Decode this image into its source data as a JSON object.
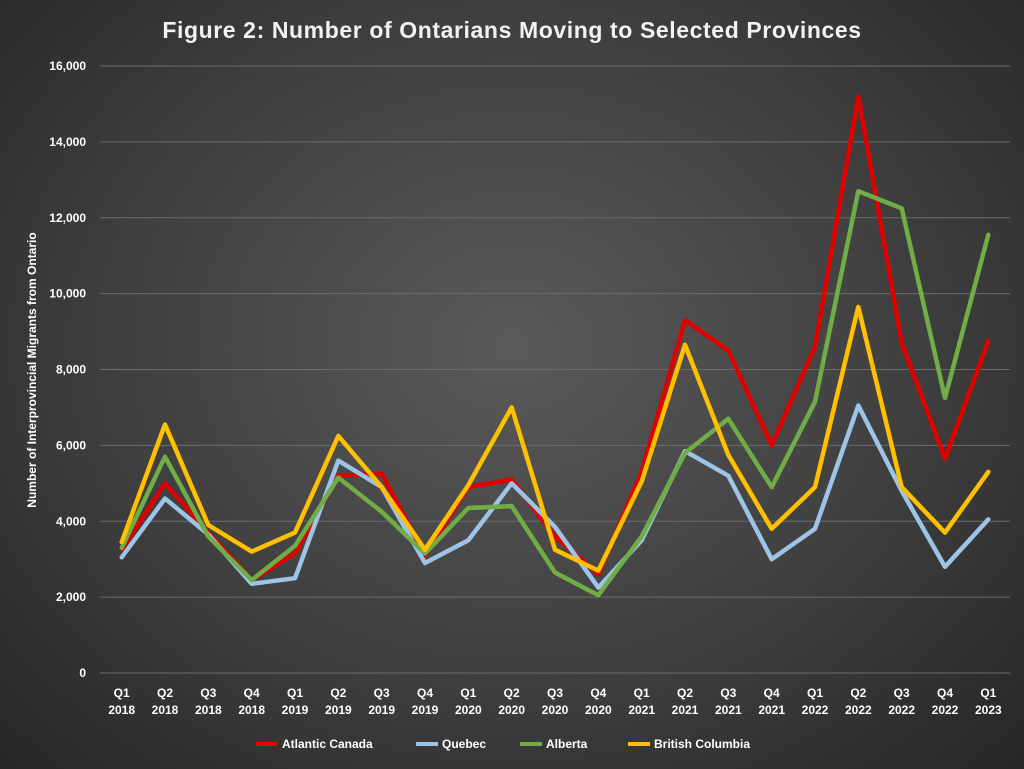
{
  "chart_data": {
    "type": "line",
    "title": "Figure 2: Number of Ontarians Moving to Selected Provinces",
    "ylabel": "Number of Interprovincial Migrants from Ontario",
    "xlabel": "",
    "ylim": [
      0,
      16000
    ],
    "yticks": [
      0,
      2000,
      4000,
      6000,
      8000,
      10000,
      12000,
      14000,
      16000
    ],
    "ytick_labels": [
      "0",
      "2,000",
      "4,000",
      "6,000",
      "8,000",
      "10,000",
      "12,000",
      "14,000",
      "16,000"
    ],
    "grid": true,
    "legend_position": "bottom",
    "categories": [
      [
        "Q1",
        "2018"
      ],
      [
        "Q2",
        "2018"
      ],
      [
        "Q3",
        "2018"
      ],
      [
        "Q4",
        "2018"
      ],
      [
        "Q1",
        "2019"
      ],
      [
        "Q2",
        "2019"
      ],
      [
        "Q3",
        "2019"
      ],
      [
        "Q4",
        "2019"
      ],
      [
        "Q1",
        "2020"
      ],
      [
        "Q2",
        "2020"
      ],
      [
        "Q3",
        "2020"
      ],
      [
        "Q4",
        "2020"
      ],
      [
        "Q1",
        "2021"
      ],
      [
        "Q2",
        "2021"
      ],
      [
        "Q3",
        "2021"
      ],
      [
        "Q4",
        "2021"
      ],
      [
        "Q1",
        "2022"
      ],
      [
        "Q2",
        "2022"
      ],
      [
        "Q3",
        "2022"
      ],
      [
        "Q4",
        "2022"
      ],
      [
        "Q1",
        "2023"
      ]
    ],
    "series": [
      {
        "name": "Atlantic Canada",
        "color": "#e00000",
        "values": [
          3250,
          5000,
          3700,
          2450,
          3150,
          5200,
          5250,
          3100,
          4900,
          5100,
          3600,
          2600,
          5300,
          9300,
          8500,
          6000,
          8600,
          15200,
          8700,
          5650,
          8750
        ]
      },
      {
        "name": "Quebec",
        "color": "#9dc3e6",
        "values": [
          3050,
          4600,
          3650,
          2350,
          2500,
          5600,
          4900,
          2900,
          3500,
          5000,
          3850,
          2250,
          3500,
          5850,
          5200,
          3000,
          3800,
          7050,
          4800,
          2800,
          4050
        ]
      },
      {
        "name": "Alberta",
        "color": "#70ad47",
        "values": [
          3300,
          5700,
          3600,
          2450,
          3350,
          5150,
          4250,
          3150,
          4350,
          4400,
          2650,
          2050,
          3600,
          5800,
          6700,
          4900,
          7150,
          12700,
          12250,
          7250,
          11550
        ]
      },
      {
        "name": "British Columbia",
        "color": "#ffc000",
        "values": [
          3450,
          6550,
          3900,
          3200,
          3700,
          6250,
          4900,
          3250,
          4950,
          7000,
          3250,
          2700,
          5050,
          8650,
          5750,
          3800,
          4900,
          9650,
          4900,
          3700,
          5300
        ]
      }
    ]
  }
}
